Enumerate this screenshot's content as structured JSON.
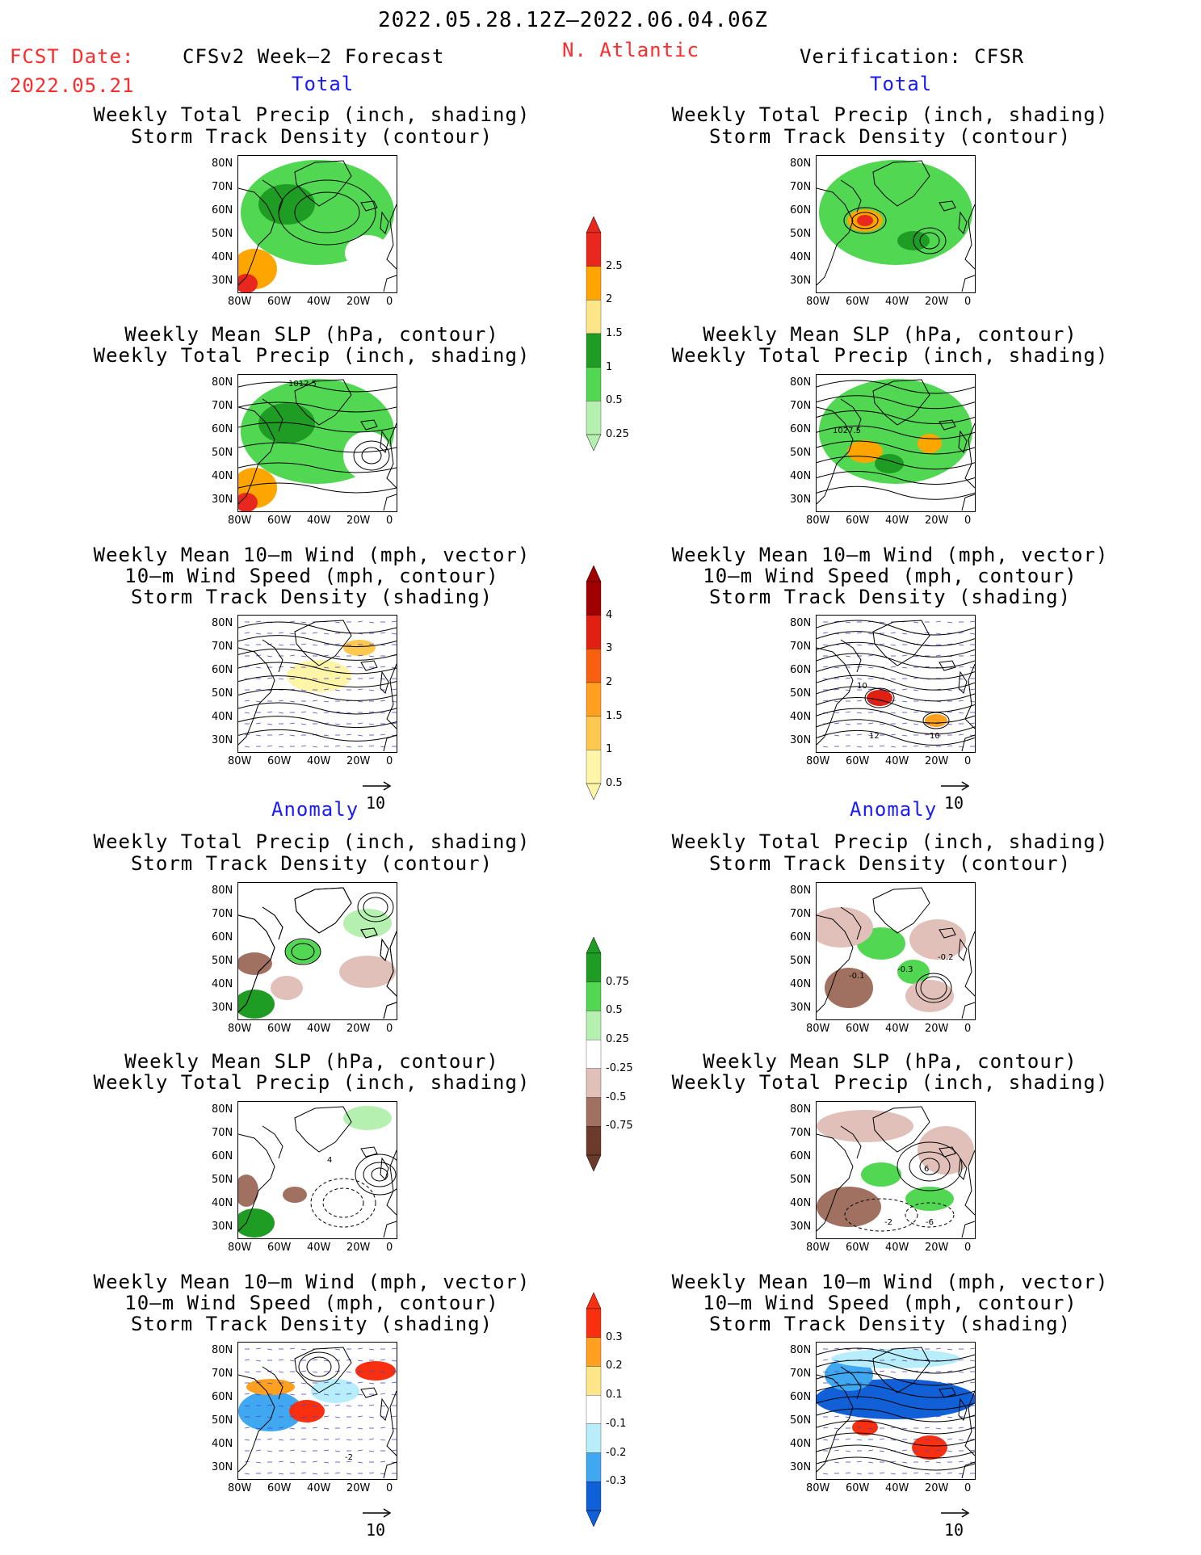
{
  "header": {
    "period": "2022.05.28.12Z–2022.06.04.06Z",
    "region": "N. Atlantic",
    "fcst_label": "FCST Date:",
    "fcst_date": "2022.05.21",
    "left_title": "CFSv2 Week–2 Forecast",
    "right_title": "Verification: CFSR"
  },
  "sections": {
    "total": "Total",
    "anomaly": "Anomaly"
  },
  "panel_titles": {
    "precip_storm": [
      "Weekly Total Precip (inch, shading)",
      "Storm Track Density (contour)"
    ],
    "slp_precip": [
      "Weekly Mean SLP (hPa, contour)",
      "Weekly Total Precip (inch, shading)"
    ],
    "wind_storm": [
      "Weekly Mean 10–m Wind (mph, vector)",
      "10–m Wind Speed (mph, contour)",
      "Storm Track Density (shading)"
    ]
  },
  "axes": {
    "lat_labels": [
      "80N",
      "70N",
      "60N",
      "50N",
      "40N",
      "30N"
    ],
    "lon_labels": [
      "80W",
      "60W",
      "40W",
      "20W",
      "0"
    ]
  },
  "contour_labels": {
    "fcst_slp_total": "1012.5",
    "verif_slp_total": "1027.5",
    "verif_wind_a": "10",
    "verif_wind_b": "12",
    "verif_wind_c": "10",
    "verif_precip_anom_a": "-0.1",
    "verif_precip_anom_b": "-0.3",
    "verif_precip_anom_c": "-0.2",
    "fcst_slp_anom": "4",
    "verif_slp_anom_a": "6",
    "verif_slp_anom_b": "-2",
    "verif_slp_anom_c": "-6",
    "fcst_wind_anom": "-2"
  },
  "vector_ref": "10",
  "colorbars": {
    "precip_total": {
      "labels": [
        "2.5",
        "2",
        "1.5",
        "1",
        "0.5",
        "0.25"
      ],
      "colors": [
        "#e8281e",
        "#ffa500",
        "#fde68a",
        "#1f9c23",
        "#52d752",
        "#b5f0b0"
      ]
    },
    "storm_total": {
      "labels": [
        "4",
        "3",
        "2",
        "1.5",
        "1",
        "0.5"
      ],
      "colors": [
        "#a00000",
        "#e02010",
        "#f86010",
        "#ffa020",
        "#ffc850",
        "#fff5a8"
      ]
    },
    "precip_anom": {
      "labels": [
        "0.75",
        "0.5",
        "0.25",
        "-0.25",
        "-0.5",
        "-0.75"
      ],
      "colors": [
        "#1f9c23",
        "#52d752",
        "#b5f0b0",
        "#ffffff",
        "#e0c0b8",
        "#a07060",
        "#6b3a2a"
      ]
    },
    "storm_anom": {
      "labels": [
        "0.3",
        "0.2",
        "0.1",
        "-0.1",
        "-0.2",
        "-0.3"
      ],
      "colors": [
        "#f83010",
        "#ffa020",
        "#fde68a",
        "#ffffff",
        "#b8eefc",
        "#40a8f0",
        "#1060d8"
      ]
    }
  }
}
